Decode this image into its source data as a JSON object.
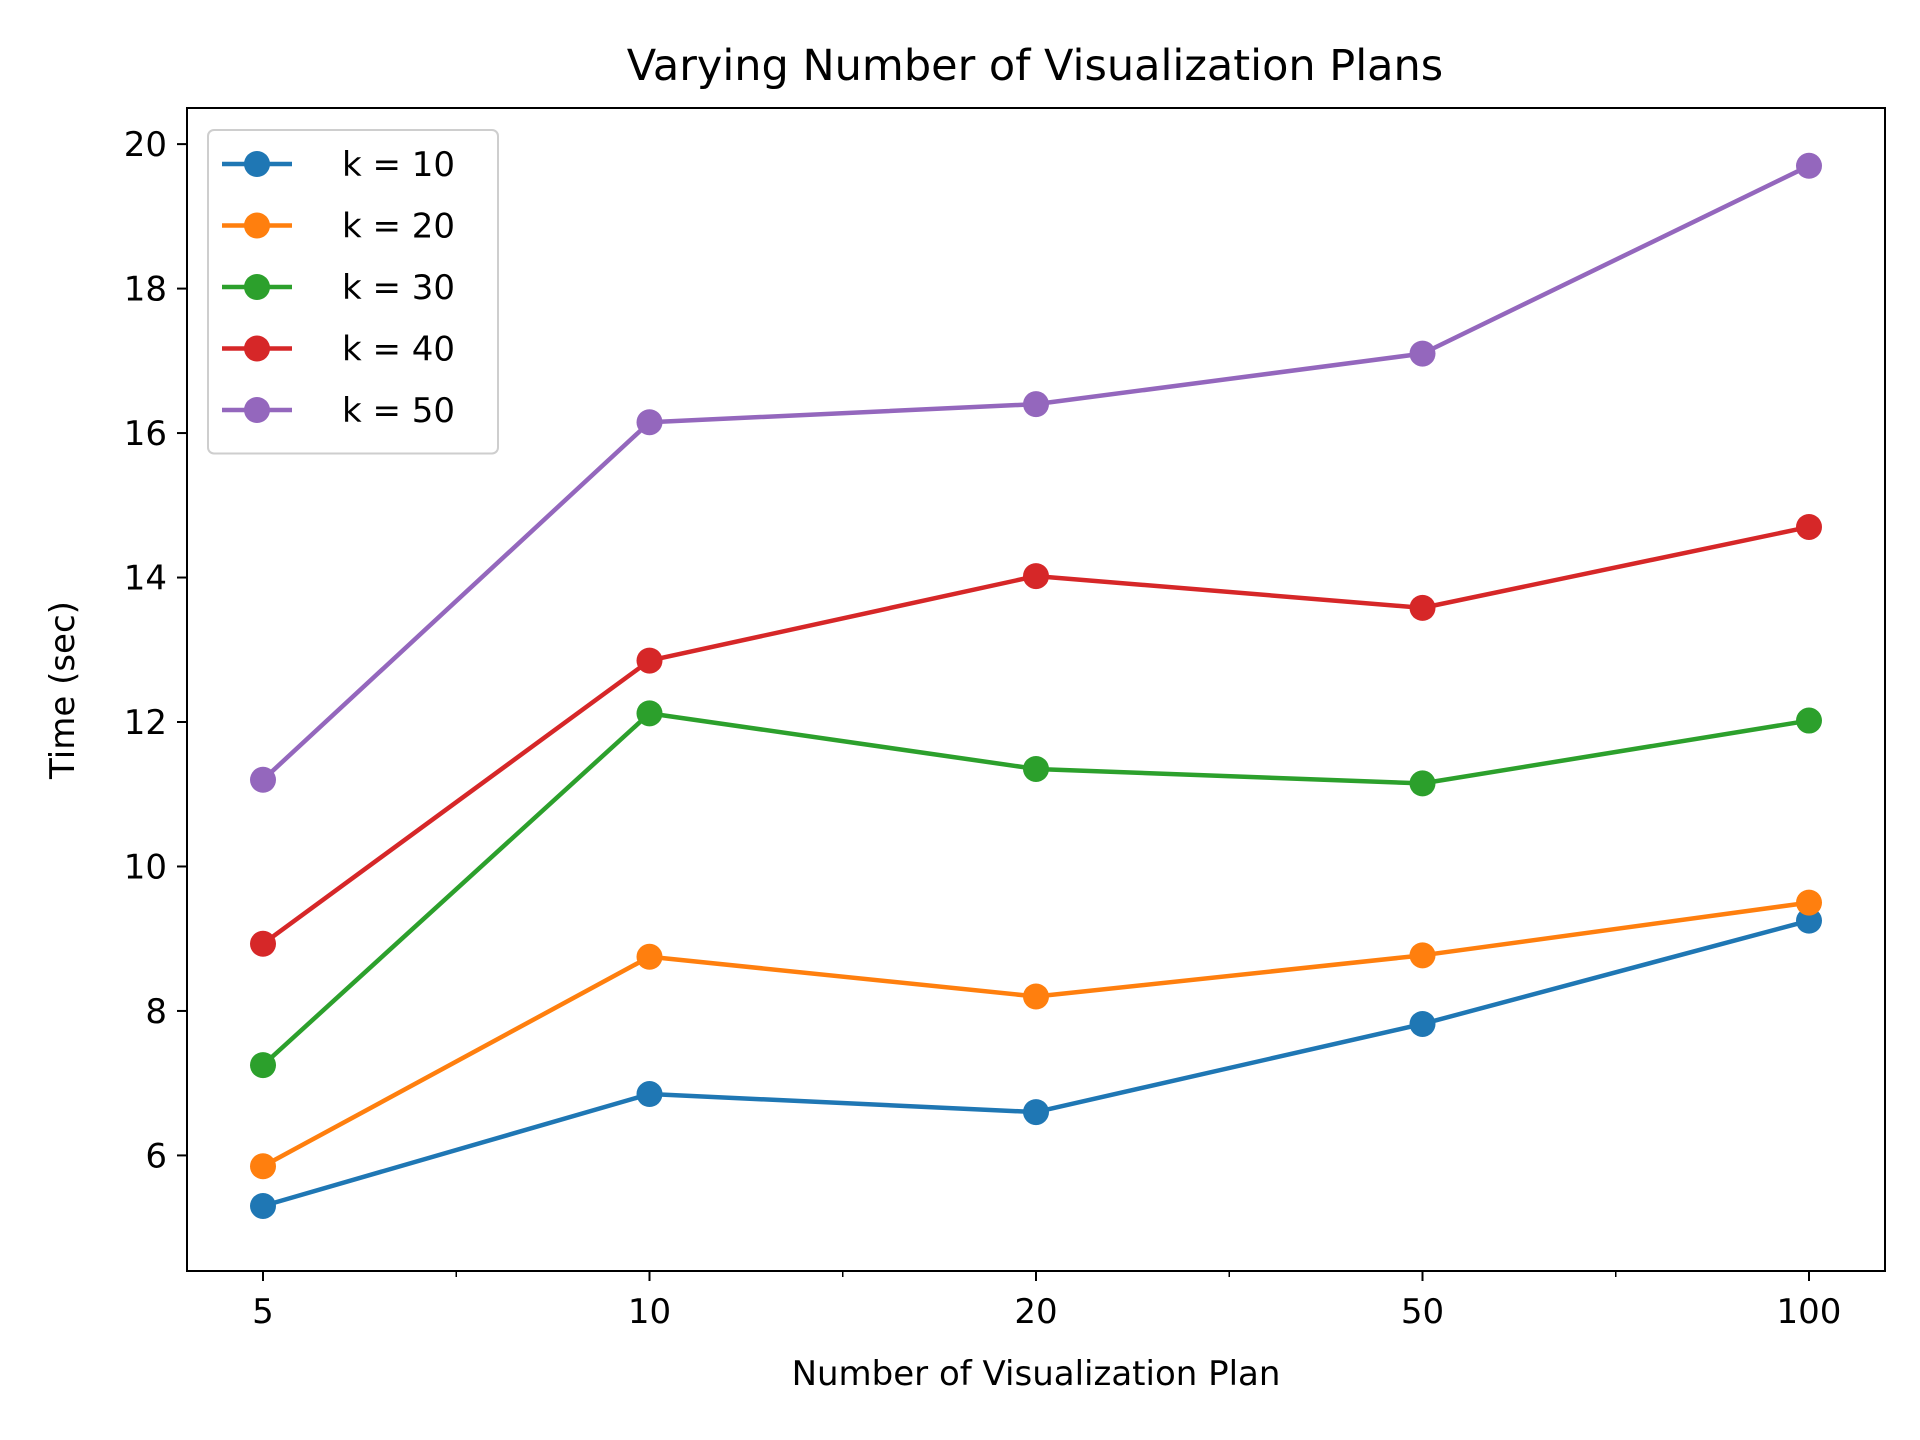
{
  "chart_data": {
    "type": "line",
    "title": "Varying Number of Visualization Plans",
    "xlabel": "Number of Visualization Plan",
    "ylabel": "Time (sec)",
    "x_categories": [
      "5",
      "10",
      "20",
      "50",
      "100"
    ],
    "minor_ticks_between": true,
    "ylim": [
      4.4,
      20.5
    ],
    "yticks": [
      6,
      8,
      10,
      12,
      14,
      16,
      18,
      20
    ],
    "grid": false,
    "legend_position": "upper-left",
    "series": [
      {
        "name": "k = 10",
        "color": "#1f77b4",
        "values": [
          5.3,
          6.85,
          6.6,
          7.82,
          9.25
        ]
      },
      {
        "name": "k = 20",
        "color": "#ff7f0e",
        "values": [
          5.85,
          8.75,
          8.2,
          8.77,
          9.5
        ]
      },
      {
        "name": "k = 30",
        "color": "#2ca02c",
        "values": [
          7.25,
          12.12,
          11.35,
          11.15,
          12.02
        ]
      },
      {
        "name": "k = 40",
        "color": "#d62728",
        "values": [
          8.93,
          12.85,
          14.02,
          13.58,
          14.7
        ]
      },
      {
        "name": "k = 50",
        "color": "#9467bd",
        "values": [
          11.2,
          16.15,
          16.4,
          17.1,
          19.7
        ]
      }
    ]
  }
}
